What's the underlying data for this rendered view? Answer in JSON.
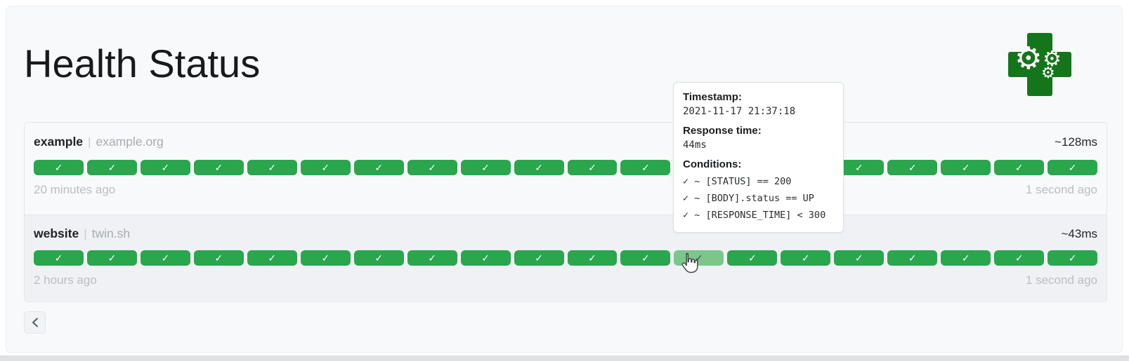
{
  "header": {
    "title": "Health Status",
    "logo_icon": "green-health-cross-with-gears"
  },
  "services": [
    {
      "name": "example",
      "separator": "|",
      "host": "example.org",
      "avg_response_time": "~128ms",
      "oldest_result": "20 minutes ago",
      "newest_result": "1 second ago",
      "hovered_index": null,
      "results": [
        "up",
        "up",
        "up",
        "up",
        "up",
        "up",
        "up",
        "up",
        "up",
        "up",
        "up",
        "up",
        "up",
        "up",
        "up",
        "up",
        "up",
        "up",
        "up",
        "up"
      ]
    },
    {
      "name": "website",
      "separator": "|",
      "host": "twin.sh",
      "avg_response_time": "~43ms",
      "oldest_result": "2 hours ago",
      "newest_result": "1 second ago",
      "hovered_index": 12,
      "results": [
        "up",
        "up",
        "up",
        "up",
        "up",
        "up",
        "up",
        "up",
        "up",
        "up",
        "up",
        "up",
        "up",
        "up",
        "up",
        "up",
        "up",
        "up",
        "up",
        "up"
      ]
    }
  ],
  "status_icon": {
    "up": "✓"
  },
  "tooltip": {
    "timestamp_label": "Timestamp:",
    "timestamp": "2021-11-17 21:37:18",
    "response_time_label": "Response time:",
    "response_time": "44ms",
    "conditions_label": "Conditions:",
    "conditions": [
      "✓ ~ [STATUS] == 200",
      "✓ ~ [BODY].status == UP",
      "✓ ~ [RESPONSE_TIME] < 300"
    ]
  },
  "pagination": {
    "previous": "‹"
  },
  "colors": {
    "success": "#2aa64c",
    "success_hover": "#7cc68c",
    "logo_green": "#15751b",
    "page_bg": "#f8f9fa",
    "row_highlight_bg": "#eff1f4"
  }
}
